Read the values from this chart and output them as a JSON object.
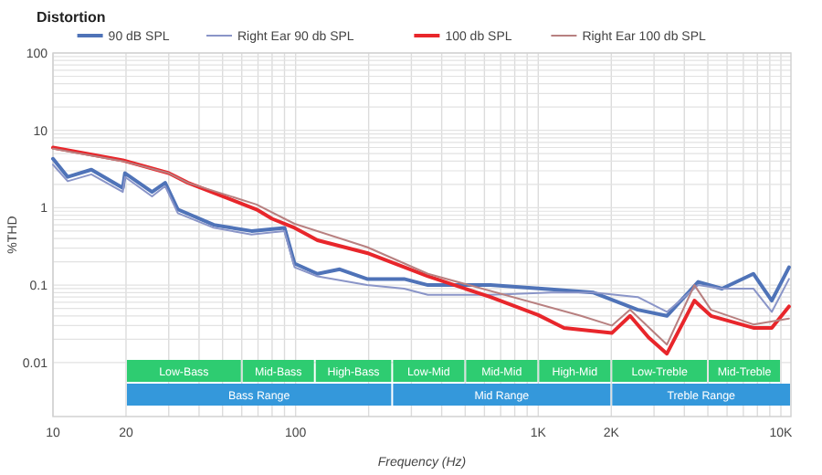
{
  "chart_data": {
    "type": "line",
    "title": "Distortion",
    "xlabel": "Frequency (Hz)",
    "ylabel": "%THD",
    "log": "xy",
    "grid": true,
    "legend": "top",
    "line_style": "solid",
    "marker": "none",
    "xlim": [
      10,
      11000
    ],
    "ylim": [
      0.002,
      100
    ],
    "xticks": [
      10,
      20,
      {
        "value": 30,
        "label": null
      },
      {
        "value": 40,
        "label": null
      },
      {
        "value": 50,
        "label": null
      },
      {
        "value": 60,
        "label": null
      },
      {
        "value": 70,
        "label": null
      },
      {
        "value": 80,
        "label": null
      },
      {
        "value": 90,
        "label": null
      },
      100,
      {
        "value": 200,
        "label": null
      },
      {
        "value": 300,
        "label": null
      },
      {
        "value": 400,
        "label": null
      },
      {
        "value": 500,
        "label": null
      },
      {
        "value": 600,
        "label": null
      },
      {
        "value": 700,
        "label": null
      },
      {
        "value": 800,
        "label": null
      },
      {
        "value": 900,
        "label": null
      },
      {
        "value": 1000,
        "label": "1K"
      },
      {
        "value": 2000,
        "label": "2K"
      },
      {
        "value": 3000,
        "label": null
      },
      {
        "value": 4000,
        "label": null
      },
      {
        "value": 5000,
        "label": null
      },
      {
        "value": 6000,
        "label": null
      },
      {
        "value": 7000,
        "label": null
      },
      {
        "value": 8000,
        "label": null
      },
      {
        "value": 9000,
        "label": null
      },
      {
        "value": 10000,
        "label": "10K"
      }
    ],
    "yticks": [
      0.01,
      {
        "value": 0.02,
        "label": null
      },
      {
        "value": 0.03,
        "label": null
      },
      {
        "value": 0.04,
        "label": null
      },
      {
        "value": 0.05,
        "label": null
      },
      {
        "value": 0.06,
        "label": null
      },
      {
        "value": 0.07,
        "label": null
      },
      {
        "value": 0.08,
        "label": null
      },
      {
        "value": 0.09,
        "label": null
      },
      0.1,
      {
        "value": 0.2,
        "label": null
      },
      {
        "value": 0.3,
        "label": null
      },
      {
        "value": 0.4,
        "label": null
      },
      {
        "value": 0.5,
        "label": null
      },
      {
        "value": 0.6,
        "label": null
      },
      {
        "value": 0.7,
        "label": null
      },
      {
        "value": 0.8,
        "label": null
      },
      {
        "value": 0.9,
        "label": null
      },
      1,
      {
        "value": 2,
        "label": null
      },
      {
        "value": 3,
        "label": null
      },
      {
        "value": 4,
        "label": null
      },
      {
        "value": 5,
        "label": null
      },
      {
        "value": 6,
        "label": null
      },
      {
        "value": 7,
        "label": null
      },
      {
        "value": 8,
        "label": null
      },
      {
        "value": 9,
        "label": null
      },
      10,
      {
        "value": 20,
        "label": null
      },
      {
        "value": 30,
        "label": null
      },
      {
        "value": 40,
        "label": null
      },
      {
        "value": 50,
        "label": null
      },
      {
        "value": 60,
        "label": null
      },
      {
        "value": 70,
        "label": null
      },
      {
        "value": 80,
        "label": null
      },
      {
        "value": 90,
        "label": null
      },
      100
    ],
    "series": [
      {
        "name": "90 dB SPL",
        "color": "#4f73b8",
        "x": [
          10,
          11.5,
          14.4,
          19.4,
          19.8,
          25.6,
          29,
          32.7,
          46,
          65.8,
          90,
          99,
          123,
          152,
          197,
          280,
          351,
          635,
          1130,
          1690,
          2570,
          3390,
          4560,
          5720,
          7700,
          9170,
          10800
        ],
        "values": [
          4.3,
          2.5,
          3.1,
          1.8,
          2.8,
          1.6,
          2.1,
          0.95,
          0.6,
          0.5,
          0.55,
          0.19,
          0.14,
          0.16,
          0.12,
          0.12,
          0.1,
          0.1,
          0.088,
          0.08,
          0.048,
          0.04,
          0.11,
          0.09,
          0.14,
          0.063,
          0.17
        ]
      },
      {
        "name": "Right Ear 90 db SPL",
        "color": "#8a95c8",
        "x": [
          10,
          11.5,
          14.4,
          19.4,
          19.8,
          25.6,
          29,
          32.7,
          46,
          65.8,
          90,
          99,
          123,
          197,
          280,
          351,
          635,
          1130,
          1690,
          2570,
          3390,
          4560,
          5720,
          7700,
          9170,
          10800
        ],
        "values": [
          3.6,
          2.2,
          2.7,
          1.6,
          2.5,
          1.4,
          1.9,
          0.85,
          0.55,
          0.45,
          0.5,
          0.17,
          0.13,
          0.1,
          0.09,
          0.075,
          0.075,
          0.08,
          0.08,
          0.07,
          0.045,
          0.1,
          0.09,
          0.09,
          0.045,
          0.12
        ]
      },
      {
        "name": "100 db SPL",
        "color": "#e8262b",
        "x": [
          10,
          19.4,
          30,
          36,
          69,
          80,
          99,
          123,
          197,
          351,
          635,
          1000,
          1277,
          2010,
          2390,
          2850,
          3390,
          4400,
          5150,
          7700,
          9170,
          10800
        ],
        "values": [
          6.0,
          4.1,
          2.8,
          2.1,
          0.95,
          0.72,
          0.55,
          0.38,
          0.26,
          0.13,
          0.07,
          0.041,
          0.028,
          0.024,
          0.04,
          0.021,
          0.013,
          0.063,
          0.04,
          0.028,
          0.028,
          0.053
        ]
      },
      {
        "name": "Right Ear 100 db SPL",
        "color": "#b88080",
        "x": [
          10,
          19.4,
          30,
          36,
          69,
          99,
          197,
          351,
          1500,
          2010,
          2390,
          3390,
          4400,
          5150,
          7700,
          10800
        ],
        "values": [
          5.8,
          4.0,
          2.8,
          2.1,
          1.1,
          0.62,
          0.31,
          0.14,
          0.04,
          0.03,
          0.048,
          0.017,
          0.1,
          0.048,
          0.031,
          0.037
        ]
      }
    ],
    "bands": [
      {
        "axis": "x",
        "from": 20,
        "to": 60,
        "label": "Low-Bass",
        "color": "#2ecc71"
      },
      {
        "axis": "x",
        "from": 60,
        "to": 120,
        "label": "Mid-Bass",
        "color": "#2ecc71"
      },
      {
        "axis": "x",
        "from": 120,
        "to": 250,
        "label": "High-Bass",
        "color": "#2ecc71"
      },
      {
        "axis": "x",
        "from": 250,
        "to": 500,
        "label": "Low-Mid",
        "color": "#2ecc71"
      },
      {
        "axis": "x",
        "from": 500,
        "to": 1000,
        "label": "Mid-Mid",
        "color": "#2ecc71"
      },
      {
        "axis": "x",
        "from": 1000,
        "to": 2000,
        "label": "High-Mid",
        "color": "#2ecc71"
      },
      {
        "axis": "x",
        "from": 2000,
        "to": 5000,
        "label": "Low-Treble",
        "color": "#2ecc71"
      },
      {
        "axis": "x",
        "from": 5000,
        "to": 10000,
        "label": "Mid-Treble",
        "color": "#2ecc71"
      },
      {
        "axis": "x",
        "from": 20,
        "to": 250,
        "label": "Bass Range",
        "color": "#3498db"
      },
      {
        "axis": "x",
        "from": 250,
        "to": 2000,
        "label": "Mid Range",
        "color": "#3498db"
      },
      {
        "axis": "x",
        "from": 2000,
        "to": 11000,
        "label": "Treble Range",
        "color": "#3498db"
      }
    ]
  }
}
